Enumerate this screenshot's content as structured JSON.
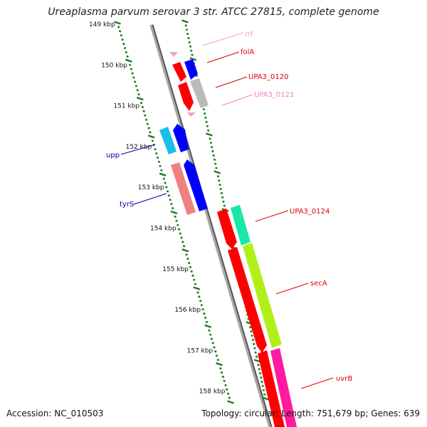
{
  "title": "Ureaplasma parvum serovar 3 str. ATCC 27815, complete genome",
  "accession": "Accession: NC_010503",
  "topology": "Topology: circular; Length: 751,679 bp; Genes: 639",
  "colors": {
    "backbone": "#888888",
    "tick": "#1e7a1e",
    "red": "#ff0000",
    "blue": "#0000ee",
    "gray": "#bbbbbb",
    "pink": "#f080c0",
    "cyan": "#18c0e8",
    "salmon": "#ee8080",
    "teal": "#18e8a8",
    "lime": "#b0f018",
    "magenta": "#ff1aa0"
  },
  "kbp_labels": [
    "149 kbp",
    "150 kbp",
    "151 kbp",
    "152 kbp",
    "153 kbp",
    "154 kbp",
    "155 kbp",
    "156 kbp",
    "157 kbp",
    "158 kbp"
  ],
  "genes": [
    {
      "name": "rrf",
      "color": "#f4a0c8"
    },
    {
      "name": "folA",
      "color": "#dd0000"
    },
    {
      "name": "UPA3_0120",
      "color": "#dd0000"
    },
    {
      "name": "UPA3_0121",
      "color": "#f080c0"
    },
    {
      "name": "upp",
      "color": "#0000aa"
    },
    {
      "name": "tyrS",
      "color": "#0000aa"
    },
    {
      "name": "UPA3_0124",
      "color": "#dd0000"
    },
    {
      "name": "secA",
      "color": "#dd0000"
    },
    {
      "name": "uvrB",
      "color": "#dd0000"
    }
  ]
}
